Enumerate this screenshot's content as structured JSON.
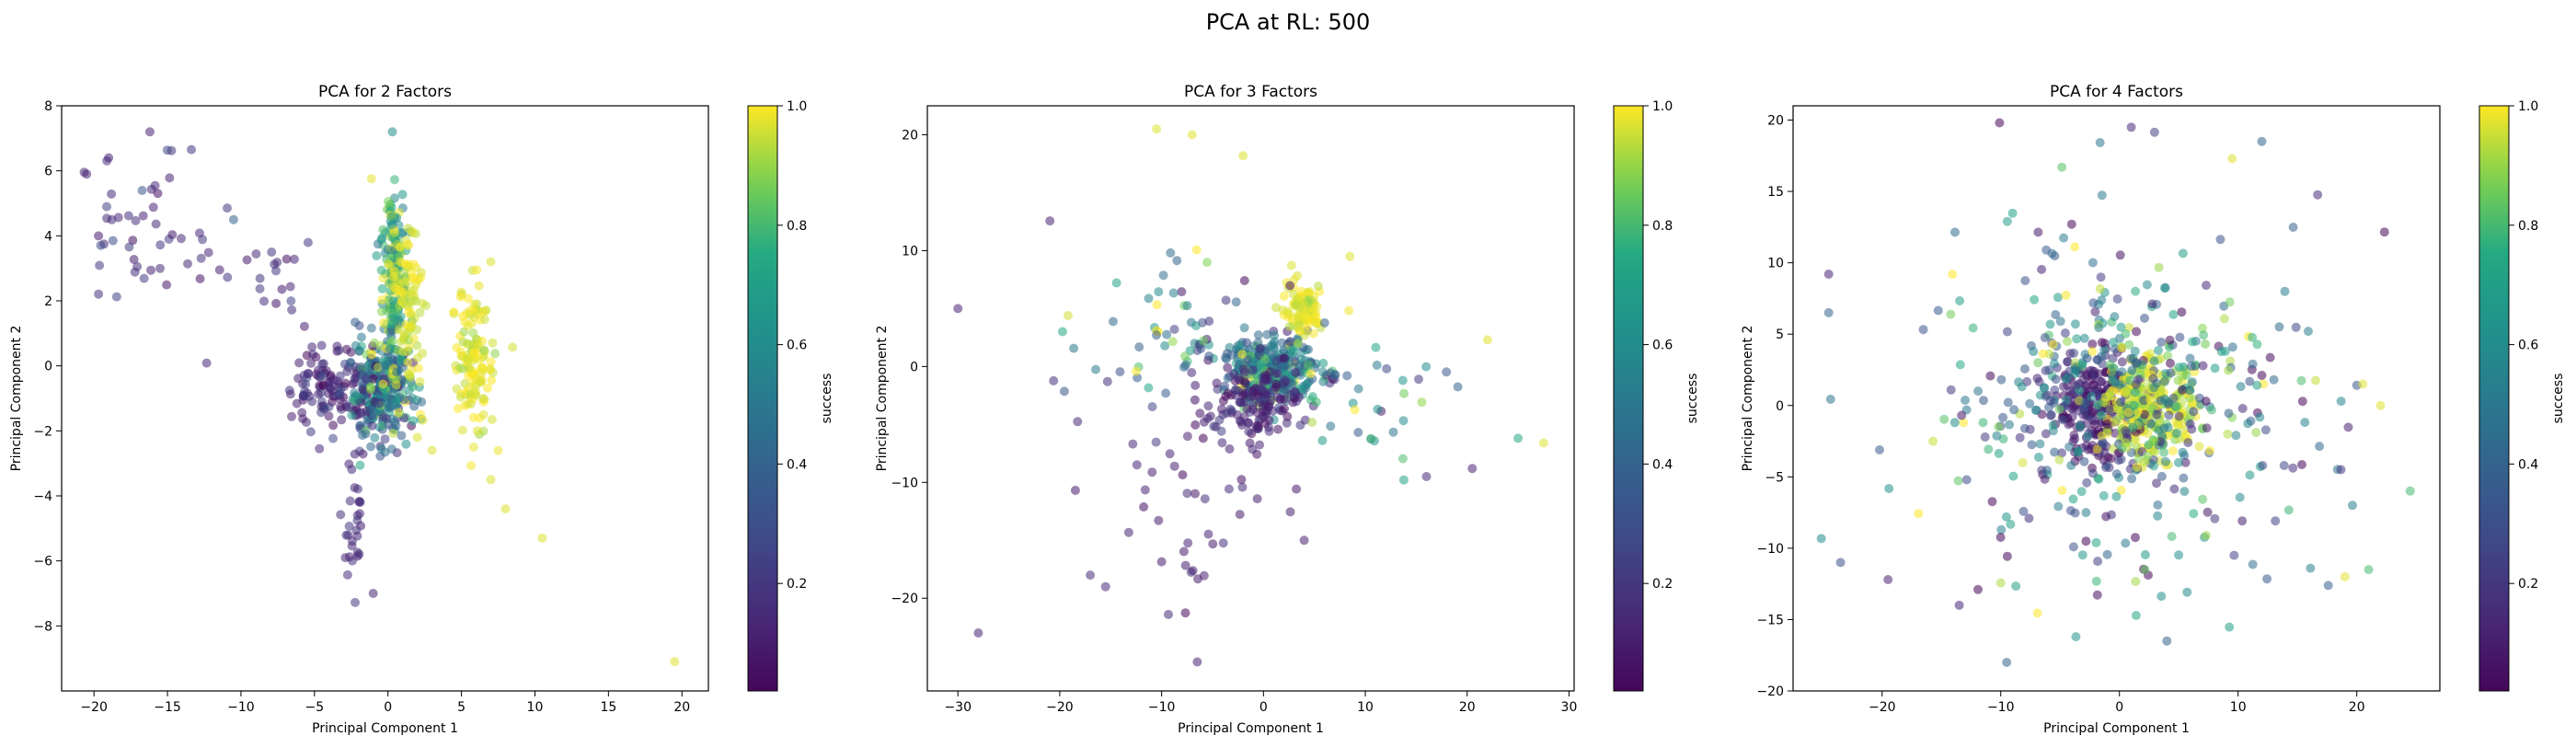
{
  "suptitle": "PCA at RL: 500",
  "colorbar": {
    "label": "success",
    "ticks": [
      0.2,
      0.4,
      0.6,
      0.8,
      1.0
    ],
    "tick_labels": [
      "0.2",
      "0.4",
      "0.6",
      "0.8",
      "1.0"
    ],
    "range": [
      0.02,
      1.0
    ],
    "colormap": "viridis"
  },
  "marker": {
    "alpha": 0.55
  },
  "chart_data": [
    {
      "type": "scatter",
      "title": "PCA for 2 Factors",
      "xlabel": "Principal Component 1",
      "ylabel": "Principal Component 2",
      "xlim": [
        -22.2,
        21.8
      ],
      "ylim": [
        -10.0,
        8.0
      ],
      "xticks": [
        -20,
        -15,
        -10,
        -5,
        0,
        5,
        10,
        15,
        20
      ],
      "yticks": [
        -8,
        -6,
        -4,
        -2,
        0,
        2,
        4,
        6,
        8
      ],
      "grid": false,
      "colorbar_label": "success",
      "clusters": [
        {
          "name": "",
          "count": 45,
          "cx": -16.5,
          "cy": 4.2,
          "sx": 2.3,
          "sy": 1.2,
          "c": 0.15,
          "csd": 0.06
        },
        {
          "name": "",
          "count": 25,
          "cx": -8.5,
          "cy": 2.2,
          "sx": 2.0,
          "sy": 1.0,
          "c": 0.15,
          "csd": 0.05
        },
        {
          "name": "",
          "count": 120,
          "cx": -3.8,
          "cy": -0.6,
          "sx": 1.4,
          "sy": 0.6,
          "c": 0.15,
          "csd": 0.08
        },
        {
          "name": "",
          "count": 280,
          "cx": -0.6,
          "cy": -0.8,
          "sx": 1.1,
          "sy": 0.75,
          "c": 0.45,
          "csd": 0.22
        },
        {
          "name": "",
          "count": 190,
          "cx": 0.4,
          "cy": 2.6,
          "sx": 0.45,
          "sy": 1.5,
          "c": 0.8,
          "csd": 0.2
        },
        {
          "name": "",
          "count": 90,
          "cx": 1.4,
          "cy": 1.9,
          "sx": 0.45,
          "sy": 1.4,
          "c": 0.97,
          "csd": 0.03
        },
        {
          "name": "",
          "count": 130,
          "cx": 5.8,
          "cy": 0.2,
          "sx": 0.75,
          "sy": 1.1,
          "c": 0.97,
          "csd": 0.03
        },
        {
          "name": "",
          "count": 28,
          "cx": -2.3,
          "cy": -4.9,
          "sx": 0.4,
          "sy": 1.1,
          "c": 0.15,
          "csd": 0.04
        }
      ],
      "points": [
        {
          "x": -20.5,
          "y": 5.9,
          "c": 0.12
        },
        {
          "x": -19.0,
          "y": 6.4,
          "c": 0.12
        },
        {
          "x": -16.2,
          "y": 7.2,
          "c": 0.12
        },
        {
          "x": 0.3,
          "y": 7.2,
          "c": 0.6
        },
        {
          "x": -10.5,
          "y": 4.5,
          "c": 0.4
        },
        {
          "x": 6.5,
          "y": -1.5,
          "c": 0.97
        },
        {
          "x": 7.0,
          "y": -3.5,
          "c": 0.97
        },
        {
          "x": 8.0,
          "y": -4.4,
          "c": 0.97
        },
        {
          "x": 10.5,
          "y": -5.3,
          "c": 0.97
        },
        {
          "x": 19.5,
          "y": -9.1,
          "c": 0.97
        },
        {
          "x": 3.0,
          "y": -2.6,
          "c": 0.97
        },
        {
          "x": 2.0,
          "y": -2.2,
          "c": 0.97
        },
        {
          "x": -1.0,
          "y": -7.0,
          "c": 0.12
        },
        {
          "x": -2.9,
          "y": -5.9,
          "c": 0.12
        }
      ]
    },
    {
      "type": "scatter",
      "title": "PCA for 3 Factors",
      "xlabel": "Principal Component 1",
      "ylabel": "Principal Component 2",
      "xlim": [
        -33.0,
        30.5
      ],
      "ylim": [
        -28.0,
        22.5
      ],
      "xticks": [
        -30,
        -20,
        -10,
        0,
        10,
        20,
        30
      ],
      "yticks": [
        -20,
        -10,
        0,
        10,
        20
      ],
      "grid": false,
      "colorbar_label": "success",
      "clusters": [
        {
          "name": "",
          "count": 300,
          "cx": 0.8,
          "cy": -0.3,
          "sx": 2.4,
          "sy": 1.4,
          "c": 0.55,
          "csd": 0.22
        },
        {
          "name": "",
          "count": 120,
          "cx": -0.8,
          "cy": -3.0,
          "sx": 2.3,
          "sy": 1.6,
          "c": 0.12,
          "csd": 0.06
        },
        {
          "name": "",
          "count": 90,
          "cx": 3.8,
          "cy": 5.0,
          "sx": 1.2,
          "sy": 1.1,
          "c": 0.97,
          "csd": 0.03
        },
        {
          "name": "",
          "count": 70,
          "cx": -8.0,
          "cy": 3.0,
          "sx": 5.5,
          "sy": 3.0,
          "c": 0.55,
          "csd": 0.25
        },
        {
          "name": "",
          "count": 45,
          "cx": -5.5,
          "cy": -8.0,
          "sx": 5.5,
          "sy": 5.5,
          "c": 0.12,
          "csd": 0.05
        },
        {
          "name": "",
          "count": 30,
          "cx": 10.0,
          "cy": -4.0,
          "sx": 4.5,
          "sy": 2.5,
          "c": 0.6,
          "csd": 0.25
        },
        {
          "name": "",
          "count": 12,
          "cx": -7.0,
          "cy": -16.0,
          "sx": 1.8,
          "sy": 2.2,
          "c": 0.12,
          "csd": 0.05
        }
      ],
      "points": [
        {
          "x": -30.0,
          "y": 5.0,
          "c": 0.12
        },
        {
          "x": -28.0,
          "y": -23.0,
          "c": 0.12
        },
        {
          "x": -10.5,
          "y": 20.5,
          "c": 0.97
        },
        {
          "x": -7.0,
          "y": 20.0,
          "c": 0.97
        },
        {
          "x": -2.0,
          "y": 18.2,
          "c": 0.97
        },
        {
          "x": -15.5,
          "y": -19.0,
          "c": 0.15
        },
        {
          "x": -17.0,
          "y": -18.0,
          "c": 0.15
        },
        {
          "x": -6.5,
          "y": -25.5,
          "c": 0.12
        },
        {
          "x": 16.0,
          "y": -9.5,
          "c": 0.15
        },
        {
          "x": 22.0,
          "y": 2.3,
          "c": 0.97
        },
        {
          "x": 25.0,
          "y": -6.2,
          "c": 0.75
        },
        {
          "x": 27.5,
          "y": -6.6,
          "c": 0.97
        },
        {
          "x": 20.5,
          "y": -8.8,
          "c": 0.12
        },
        {
          "x": 8.5,
          "y": 9.5,
          "c": 0.97
        },
        {
          "x": 4.0,
          "y": -15.0,
          "c": 0.12
        }
      ]
    },
    {
      "type": "scatter",
      "title": "PCA for 4 Factors",
      "xlabel": "Principal Component 1",
      "ylabel": "Principal Component 2",
      "xlim": [
        -27.5,
        27.0
      ],
      "ylim": [
        -20.0,
        21.0
      ],
      "xticks": [
        -20,
        -10,
        0,
        10,
        20
      ],
      "yticks": [
        -20,
        -15,
        -10,
        -5,
        0,
        5,
        10,
        15,
        20
      ],
      "grid": false,
      "colorbar_label": "success",
      "clusters": [
        {
          "name": "",
          "count": 250,
          "cx": -2.0,
          "cy": 0.0,
          "sx": 2.0,
          "sy": 1.8,
          "c": 0.12,
          "csd": 0.07
        },
        {
          "name": "",
          "count": 260,
          "cx": 2.5,
          "cy": 0.0,
          "sx": 2.0,
          "sy": 1.8,
          "c": 0.95,
          "csd": 0.06
        },
        {
          "name": "",
          "count": 220,
          "cx": 0.0,
          "cy": 0.0,
          "sx": 5.5,
          "sy": 4.0,
          "c": 0.5,
          "csd": 0.3
        },
        {
          "name": "",
          "count": 260,
          "cx": 0.0,
          "cy": 0.0,
          "sx": 9.0,
          "sy": 7.0,
          "c": 0.5,
          "csd": 0.32
        }
      ],
      "points": [
        {
          "x": 1.0,
          "y": 19.5,
          "c": 0.15
        },
        {
          "x": 12.0,
          "y": 18.5,
          "c": 0.4
        },
        {
          "x": 9.5,
          "y": 17.3,
          "c": 0.97
        },
        {
          "x": -24.5,
          "y": 9.2,
          "c": 0.12
        },
        {
          "x": -24.5,
          "y": 6.5,
          "c": 0.4
        },
        {
          "x": 24.5,
          "y": -6.0,
          "c": 0.8
        },
        {
          "x": -23.5,
          "y": -11.0,
          "c": 0.3
        },
        {
          "x": -19.5,
          "y": -12.2,
          "c": 0.12
        },
        {
          "x": -9.5,
          "y": -18.0,
          "c": 0.4
        },
        {
          "x": 4.0,
          "y": -16.5,
          "c": 0.4
        },
        {
          "x": 21.0,
          "y": -11.5,
          "c": 0.8
        },
        {
          "x": 19.0,
          "y": -12.0,
          "c": 0.97
        },
        {
          "x": 20.5,
          "y": 1.5,
          "c": 0.97
        },
        {
          "x": 22.0,
          "y": 0.0,
          "c": 0.97
        },
        {
          "x": -13.5,
          "y": -14.0,
          "c": 0.12
        }
      ]
    }
  ]
}
